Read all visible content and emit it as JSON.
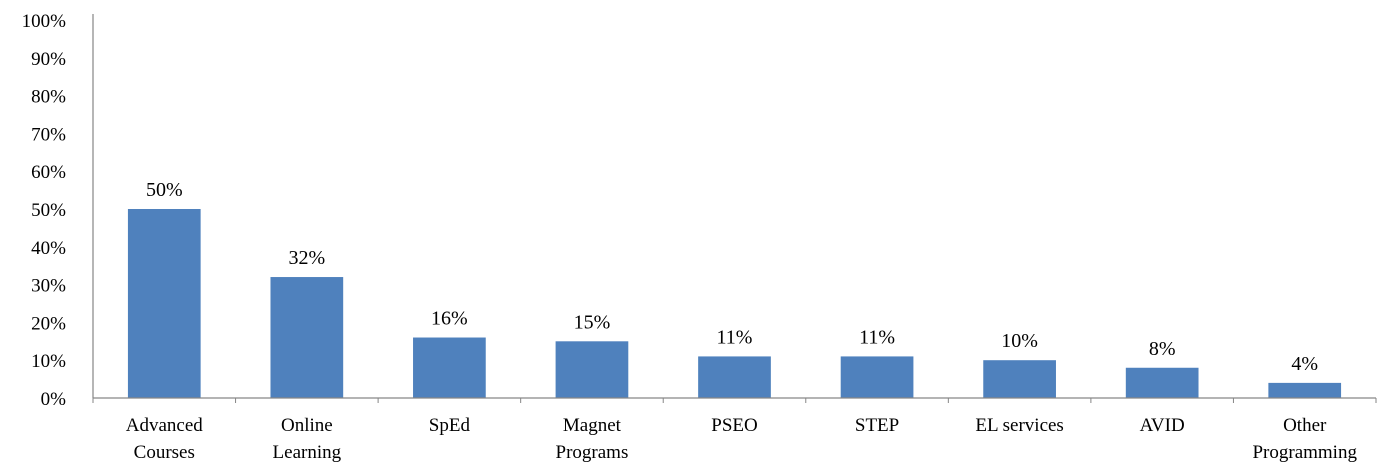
{
  "chart_data": {
    "type": "bar",
    "title": "",
    "xlabel": "",
    "ylabel": "",
    "categories": [
      [
        "Advanced",
        "Courses"
      ],
      [
        "Online",
        "Learning"
      ],
      [
        "SpEd"
      ],
      [
        "Magnet",
        "Programs"
      ],
      [
        "PSEO"
      ],
      [
        "STEP"
      ],
      [
        "EL services"
      ],
      [
        "AVID"
      ],
      [
        "Other",
        "Programming"
      ]
    ],
    "values": [
      50,
      32,
      16,
      15,
      11,
      11,
      10,
      8,
      4
    ],
    "data_labels": [
      "50%",
      "32%",
      "16%",
      "15%",
      "11%",
      "11%",
      "10%",
      "8%",
      "4%"
    ],
    "ylim": [
      0,
      100
    ],
    "yticks": [
      0,
      10,
      20,
      30,
      40,
      50,
      60,
      70,
      80,
      90,
      100
    ],
    "ytick_labels": [
      "0%",
      "10%",
      "20%",
      "30%",
      "40%",
      "50%",
      "60%",
      "70%",
      "80%",
      "90%",
      "100%"
    ],
    "grid": false,
    "legend": "none",
    "bar_color": "#4f81bd",
    "axis_color": "#868686"
  }
}
